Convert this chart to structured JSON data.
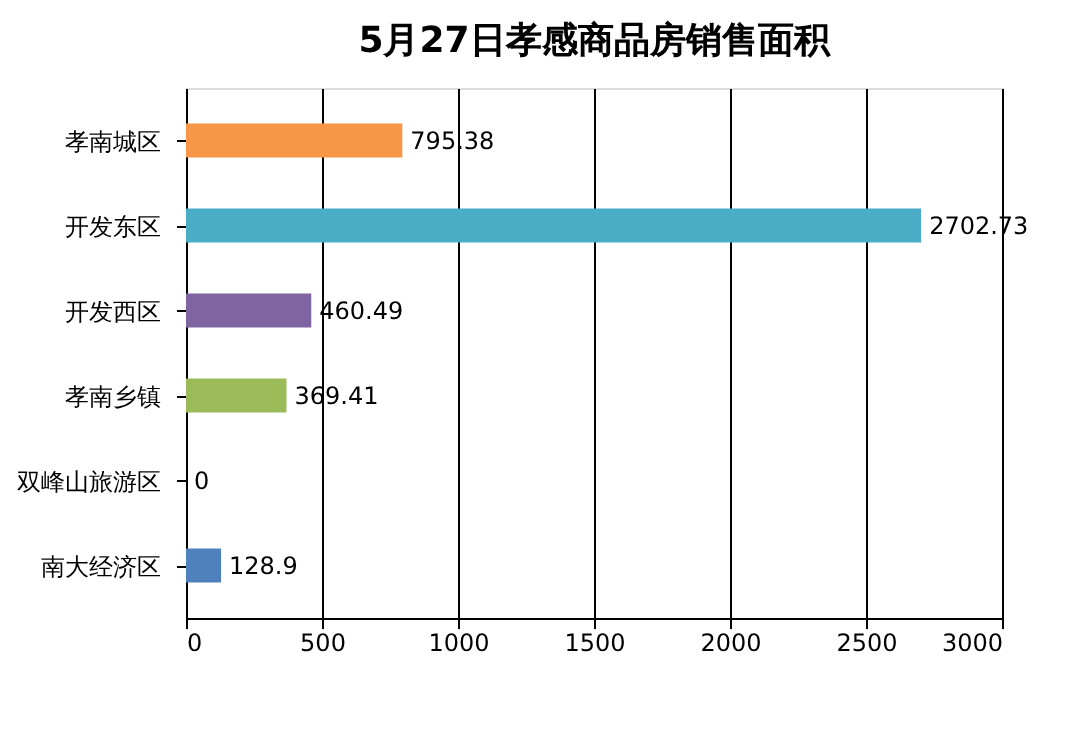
{
  "chart_data": {
    "type": "bar",
    "orientation": "horizontal",
    "title": "5月27日孝感商品房销售面积",
    "categories": [
      "孝南城区",
      "开发东区",
      "开发西区",
      "孝南乡镇",
      "双峰山旅游区",
      "南大经济区"
    ],
    "values": [
      795.38,
      2702.73,
      460.49,
      369.41,
      0,
      128.9
    ],
    "colors": [
      "#f79646",
      "#4bacc6",
      "#8064a2",
      "#9bbb59",
      "#c0504d",
      "#4f81bd"
    ],
    "xlim": [
      0,
      3000
    ],
    "xticks": [
      0,
      500,
      1000,
      1500,
      2000,
      2500,
      3000
    ],
    "grid": "x",
    "data_labels": true
  }
}
